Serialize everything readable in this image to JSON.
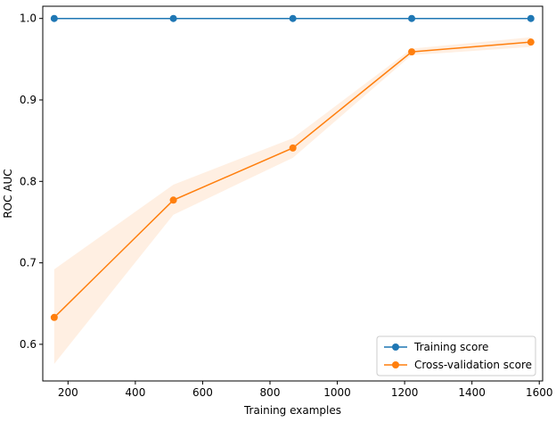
{
  "chart_data": {
    "type": "line",
    "xlabel": "Training examples",
    "ylabel": "ROC AUC",
    "xlim": [
      125,
      1610
    ],
    "ylim": [
      0.555,
      1.015
    ],
    "xticks": [
      200,
      400,
      600,
      800,
      1000,
      1200,
      1400,
      1600
    ],
    "yticks": [
      0.6,
      0.7,
      0.8,
      0.9,
      1.0
    ],
    "legend_position": "lower-right",
    "grid": false,
    "x": [
      159,
      513,
      868,
      1221,
      1575
    ],
    "series": [
      {
        "name": "Training score",
        "color": "#1f77b4",
        "values": [
          1.0,
          1.0,
          1.0,
          1.0,
          1.0
        ],
        "band_lower": [
          1.0,
          1.0,
          1.0,
          1.0,
          1.0
        ],
        "band_upper": [
          1.0,
          1.0,
          1.0,
          1.0,
          1.0
        ]
      },
      {
        "name": "Cross-validation score",
        "color": "#ff7f0e",
        "values": [
          0.633,
          0.777,
          0.841,
          0.959,
          0.971
        ],
        "band_lower": [
          0.576,
          0.759,
          0.829,
          0.955,
          0.965
        ],
        "band_upper": [
          0.692,
          0.796,
          0.853,
          0.963,
          0.977
        ]
      }
    ]
  }
}
